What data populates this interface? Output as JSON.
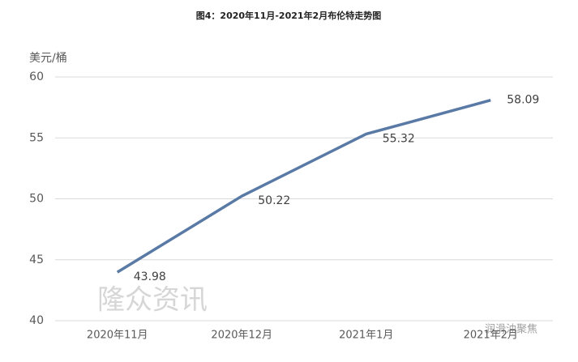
{
  "chart_data": {
    "type": "line",
    "title": "图4：2020年11月-2021年2月布伦特走势图",
    "y_label": "美元/桶",
    "categories": [
      "2020年11月",
      "2020年12月",
      "2021年1月",
      "2021年2月"
    ],
    "series": [
      {
        "name": "布伦特",
        "color": "#5a7aa6",
        "values": [
          43.98,
          50.22,
          55.32,
          58.09
        ]
      }
    ],
    "ylim": [
      40,
      60
    ],
    "yticks": [
      40,
      45,
      50,
      55,
      60
    ],
    "grid": true,
    "watermarks": [
      "隆众资讯",
      "润滑油聚焦"
    ]
  }
}
